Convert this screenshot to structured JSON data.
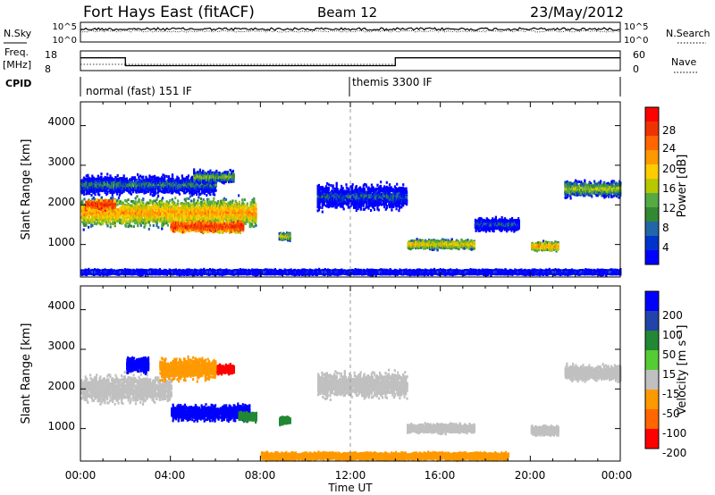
{
  "header": {
    "title": "Fort Hays East (fitACF)",
    "beam": "Beam 12",
    "date": "23/May/2012"
  },
  "top_panel": {
    "left_label": "N.Sky",
    "left_ticks": [
      "10^5",
      "10^0"
    ],
    "right_ticks": [
      "10^5",
      "10^0"
    ],
    "right_label": "N.Search"
  },
  "freq_panel": {
    "left_label": "Freq.",
    "left_unit": "[MHz]",
    "left_ticks": [
      "18",
      "8"
    ],
    "right_ticks": [
      "60",
      "0"
    ],
    "right_label": "Nave",
    "cpid_label": "CPID",
    "modes": [
      "normal (fast) 151 IF",
      "themis 3300 IF"
    ]
  },
  "power_panel": {
    "ylabel": "Slant Range [km]",
    "yticks": [
      "4000",
      "3000",
      "2000",
      "1000"
    ],
    "colorbar_label": "Power [dB]",
    "colorbar_ticks": [
      "28",
      "24",
      "20",
      "16",
      "12",
      "8",
      "4"
    ],
    "colors": [
      "#ff0000",
      "#ee3300",
      "#ff6600",
      "#ff9900",
      "#ffcc00",
      "#b8c800",
      "#55aa44",
      "#338833",
      "#2266aa",
      "#0033cc",
      "#0000ff"
    ]
  },
  "velocity_panel": {
    "ylabel": "Slant Range [km]",
    "yticks": [
      "4000",
      "3000",
      "2000",
      "1000"
    ],
    "colorbar_label": "Velocity [m s⁻¹]",
    "colorbar_ticks": [
      "200",
      "100",
      "50",
      "15",
      "-15",
      "-50",
      "-100",
      "-200"
    ],
    "colors": [
      "#0000ff",
      "#2244aa",
      "#228833",
      "#55cc33",
      "#c0c0c0",
      "#ff9900",
      "#ff6600",
      "#ff0000"
    ]
  },
  "xaxis": {
    "label": "Time UT",
    "ticks": [
      "00:00",
      "04:00",
      "08:00",
      "12:00",
      "16:00",
      "20:00",
      "00:00"
    ]
  },
  "chart_data": [
    {
      "type": "line",
      "title": "Fort Hays East (fitACF)",
      "ylabel": "N.Sky / N.Search",
      "xlim": [
        0,
        24
      ],
      "note_series": [
        {
          "name": "N.Sky",
          "style": "solid",
          "value": "near 10^4"
        },
        {
          "name": "N.Search",
          "style": "dotted",
          "value": "near 10^3"
        }
      ]
    },
    {
      "type": "line",
      "xlim": [
        0,
        24
      ],
      "ylim": [
        8,
        18
      ],
      "series": [
        {
          "name": "Freq.",
          "x": [
            0,
            2,
            2,
            14,
            14,
            24
          ],
          "values": [
            14.5,
            14.5,
            10.5,
            10.5,
            14.5,
            14.5
          ]
        },
        {
          "name": "Nave",
          "x": [
            0,
            24
          ],
          "values": [
            18,
            18
          ]
        }
      ],
      "cpid_segments": [
        {
          "label": "normal (fast) 151 IF",
          "start": 0,
          "end": 12
        },
        {
          "label": "themis 3300 IF",
          "start": 12,
          "end": 24
        }
      ]
    },
    {
      "type": "heatmap",
      "title": "Power [dB]",
      "xlabel": "Time UT",
      "ylabel": "Slant Range [km]",
      "xlim": [
        0,
        24
      ],
      "ylim": [
        180,
        4600
      ],
      "clim": [
        0,
        30
      ],
      "regions": [
        {
          "t0": 0.0,
          "t1": 7.8,
          "r_center": 1800,
          "r_width": 450,
          "value": 20
        },
        {
          "t0": 0.2,
          "t1": 1.5,
          "r_center": 2000,
          "r_width": 150,
          "value": 28
        },
        {
          "t0": 4.0,
          "t1": 7.2,
          "r_center": 1450,
          "r_width": 180,
          "value": 27
        },
        {
          "t0": 0.0,
          "t1": 6.0,
          "r_center": 2500,
          "r_width": 300,
          "value": 8
        },
        {
          "t0": 5.0,
          "t1": 6.8,
          "r_center": 2700,
          "r_width": 200,
          "value": 12
        },
        {
          "t0": 8.8,
          "t1": 9.3,
          "r_center": 1200,
          "r_width": 120,
          "value": 16
        },
        {
          "t0": 10.5,
          "t1": 14.5,
          "r_center": 2200,
          "r_width": 400,
          "value": 6
        },
        {
          "t0": 14.5,
          "t1": 17.5,
          "r_center": 1000,
          "r_width": 150,
          "value": 18
        },
        {
          "t0": 17.5,
          "t1": 19.5,
          "r_center": 1500,
          "r_width": 200,
          "value": 6
        },
        {
          "t0": 20.0,
          "t1": 21.2,
          "r_center": 950,
          "r_width": 150,
          "value": 20
        },
        {
          "t0": 21.5,
          "t1": 24.0,
          "r_center": 2400,
          "r_width": 250,
          "value": 14
        },
        {
          "t0": 0.0,
          "t1": 24.0,
          "r_center": 300,
          "r_width": 80,
          "value": 4
        }
      ]
    },
    {
      "type": "heatmap",
      "title": "Velocity [m s⁻¹]",
      "xlabel": "Time UT",
      "ylabel": "Slant Range [km]",
      "xlim": [
        0,
        24
      ],
      "ylim": [
        180,
        4600
      ],
      "clim": [
        -200,
        200
      ],
      "regions": [
        {
          "t0": 0.0,
          "t1": 4.0,
          "r_center": 2000,
          "r_width": 450,
          "value": 0
        },
        {
          "t0": 4.0,
          "t1": 7.5,
          "r_center": 1400,
          "r_width": 250,
          "value": 220
        },
        {
          "t0": 7.0,
          "t1": 7.8,
          "r_center": 1300,
          "r_width": 150,
          "value": 60
        },
        {
          "t0": 2.0,
          "t1": 3.0,
          "r_center": 2600,
          "r_width": 250,
          "value": 220
        },
        {
          "t0": 5.5,
          "t1": 6.8,
          "r_center": 2500,
          "r_width": 150,
          "value": -220
        },
        {
          "t0": 3.5,
          "t1": 6.0,
          "r_center": 2500,
          "r_width": 350,
          "value": -60
        },
        {
          "t0": 8.8,
          "t1": 9.3,
          "r_center": 1200,
          "r_width": 120,
          "value": 60
        },
        {
          "t0": 10.5,
          "t1": 14.5,
          "r_center": 2100,
          "r_width": 400,
          "value": 0
        },
        {
          "t0": 14.5,
          "t1": 17.5,
          "r_center": 1000,
          "r_width": 150,
          "value": 0
        },
        {
          "t0": 20.0,
          "t1": 21.2,
          "r_center": 950,
          "r_width": 150,
          "value": 0
        },
        {
          "t0": 21.5,
          "t1": 24.0,
          "r_center": 2400,
          "r_width": 250,
          "value": 0
        },
        {
          "t0": 8.0,
          "t1": 19.0,
          "r_center": 300,
          "r_width": 120,
          "value": -60
        }
      ]
    }
  ]
}
